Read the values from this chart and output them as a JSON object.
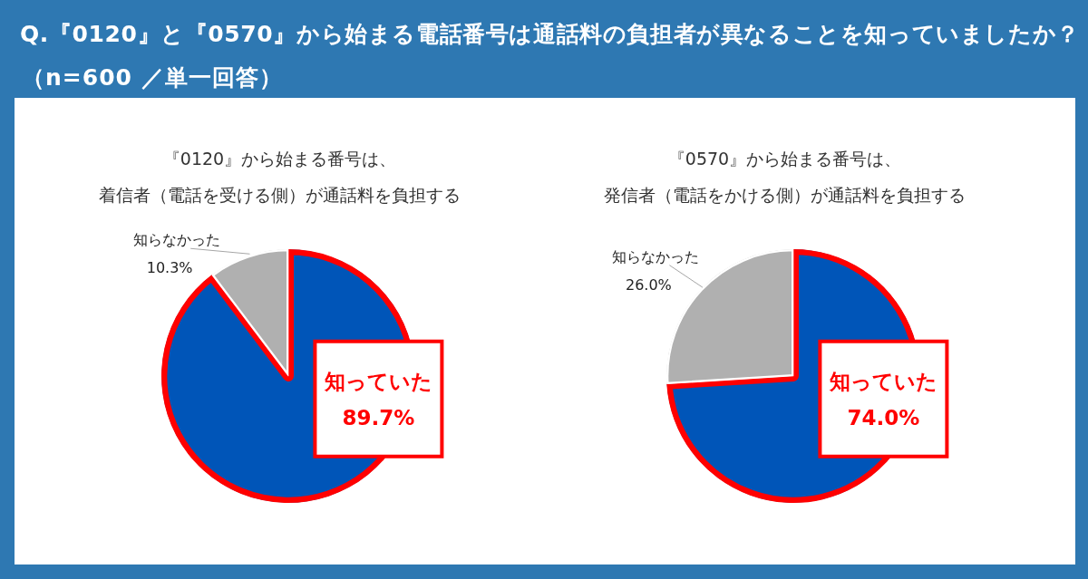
{
  "chart_data": [
    {
      "type": "other",
      "title": "Q.『0120』と『0570』から始まる電話番号は通話料の負担者が異なることを知っていましたか？",
      "subtitle": "（n=600 ／単一回答）"
    },
    {
      "type": "pie",
      "title": "『0120』から始まる番号は、",
      "subtitle": "着信者（電話を受ける側）が通話料を負担する",
      "categories": [
        "知っていた",
        "知らなかった"
      ],
      "values": [
        89.7,
        10.3
      ],
      "value_labels": [
        "89.7%",
        "10.3%"
      ],
      "colors": [
        "#0055b8",
        "#b0b0b0"
      ]
    },
    {
      "type": "pie",
      "title": "『0570』から始まる番号は、",
      "subtitle": "発信者（電話をかける側）が通話料を負担する",
      "categories": [
        "知っていた",
        "知らなかった"
      ],
      "values": [
        74.0,
        26.0
      ],
      "value_labels": [
        "74.0%",
        "26.0%"
      ],
      "colors": [
        "#0055b8",
        "#b0b0b0"
      ]
    }
  ]
}
